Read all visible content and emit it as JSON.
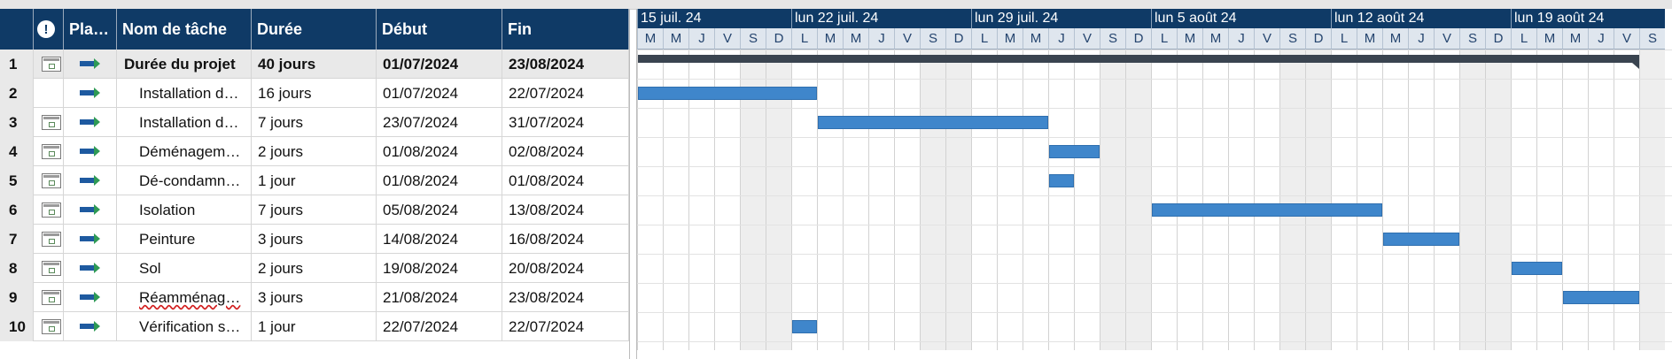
{
  "columns": {
    "indicator_icon": "info-icon",
    "mode": "Pla…",
    "name": "Nom de tâche",
    "duration": "Durée",
    "start": "Début",
    "finish": "Fin"
  },
  "tasks": [
    {
      "id": "1",
      "name": "Durée du projet",
      "duration": "40 jours",
      "start": "01/07/2024",
      "finish": "23/08/2024",
      "summary": true,
      "calendar": true
    },
    {
      "id": "2",
      "name": "Installation d…",
      "duration": "16 jours",
      "start": "01/07/2024",
      "finish": "22/07/2024",
      "calendar": false
    },
    {
      "id": "3",
      "name": "Installation d…",
      "duration": "7 jours",
      "start": "23/07/2024",
      "finish": "31/07/2024",
      "calendar": true
    },
    {
      "id": "4",
      "name": "Déménagem…",
      "duration": "2 jours",
      "start": "01/08/2024",
      "finish": "02/08/2024",
      "calendar": true
    },
    {
      "id": "5",
      "name": "Dé-condamn…",
      "duration": "1 jour",
      "start": "01/08/2024",
      "finish": "01/08/2024",
      "calendar": true
    },
    {
      "id": "6",
      "name": "Isolation",
      "duration": "7 jours",
      "start": "05/08/2024",
      "finish": "13/08/2024",
      "calendar": true
    },
    {
      "id": "7",
      "name": "Peinture",
      "duration": "3 jours",
      "start": "14/08/2024",
      "finish": "16/08/2024",
      "calendar": true
    },
    {
      "id": "8",
      "name": "Sol",
      "duration": "2 jours",
      "start": "19/08/2024",
      "finish": "20/08/2024",
      "calendar": true
    },
    {
      "id": "9",
      "name": "Réamménag…",
      "duration": "3 jours",
      "start": "21/08/2024",
      "finish": "23/08/2024",
      "calendar": true,
      "misspelled": true
    },
    {
      "id": "10",
      "name": "Vérification s…",
      "duration": "1 jour",
      "start": "22/07/2024",
      "finish": "22/07/2024",
      "calendar": true
    }
  ],
  "timescale": {
    "weeks": [
      "15 juil. 24",
      "lun 22 juil. 24",
      "lun 29 juil. 24",
      "lun 5 août 24",
      "lun 12 août 24",
      "lun 19 août 24"
    ],
    "day_letters": [
      "M",
      "M",
      "J",
      "V",
      "S",
      "D",
      "L",
      "M",
      "M",
      "J",
      "V",
      "S",
      "D",
      "L",
      "M",
      "M",
      "J",
      "V",
      "S",
      "D",
      "L",
      "M",
      "M",
      "J",
      "V",
      "S",
      "D",
      "L",
      "M",
      "M",
      "J",
      "V",
      "S",
      "D",
      "L",
      "M",
      "M",
      "J",
      "V",
      "S"
    ],
    "first_day": "2024-07-16"
  },
  "colors": {
    "header_bg": "#0f3a66",
    "task_bar": "#3f86cb",
    "summary_bar": "#3a4450",
    "weekend": "#eeeeee"
  }
}
